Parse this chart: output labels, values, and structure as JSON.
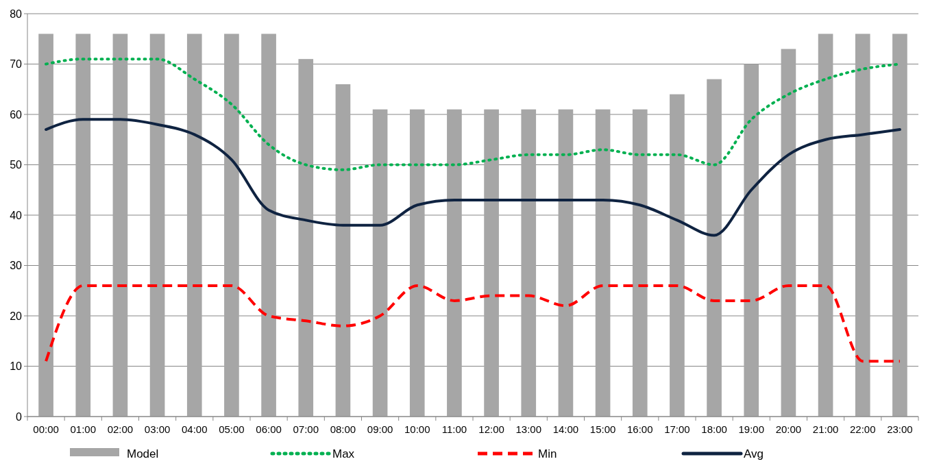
{
  "chart_data": {
    "type": "line",
    "categories": [
      "00:00",
      "01:00",
      "02:00",
      "03:00",
      "04:00",
      "05:00",
      "06:00",
      "07:00",
      "08:00",
      "09:00",
      "10:00",
      "11:00",
      "12:00",
      "13:00",
      "14:00",
      "15:00",
      "16:00",
      "17:00",
      "18:00",
      "19:00",
      "20:00",
      "21:00",
      "22:00",
      "23:00"
    ],
    "series": [
      {
        "name": "Model",
        "type": "bar",
        "color": "#a6a6a6",
        "values": [
          76,
          76,
          76,
          76,
          76,
          76,
          76,
          71,
          66,
          61,
          61,
          61,
          61,
          61,
          61,
          61,
          61,
          64,
          67,
          70,
          73,
          76,
          76,
          76
        ]
      },
      {
        "name": "Max",
        "color": "#00b050",
        "line_style": "dotted",
        "values": [
          70,
          71,
          71,
          71,
          67,
          62,
          54,
          50,
          49,
          50,
          50,
          50,
          51,
          52,
          52,
          53,
          52,
          52,
          50,
          59,
          64,
          67,
          69,
          70
        ]
      },
      {
        "name": "Min",
        "color": "#ff0000",
        "line_style": "dashed",
        "values": [
          11,
          26,
          26,
          26,
          26,
          26,
          20,
          19,
          18,
          20,
          26,
          23,
          24,
          24,
          22,
          26,
          26,
          26,
          23,
          23,
          26,
          26,
          11,
          11
        ]
      },
      {
        "name": "Avg",
        "color": "#0f2341",
        "line_style": "solid",
        "values": [
          57,
          59,
          59,
          58,
          56,
          51,
          41,
          39,
          38,
          38,
          42,
          43,
          43,
          43,
          43,
          43,
          42,
          39,
          36,
          45,
          52,
          55,
          56,
          57
        ]
      }
    ],
    "ylim": [
      0,
      80
    ],
    "yticks": [
      0,
      10,
      20,
      30,
      40,
      50,
      60,
      70,
      80
    ],
    "grid": "y",
    "legend": "bottom",
    "marker": "none"
  }
}
